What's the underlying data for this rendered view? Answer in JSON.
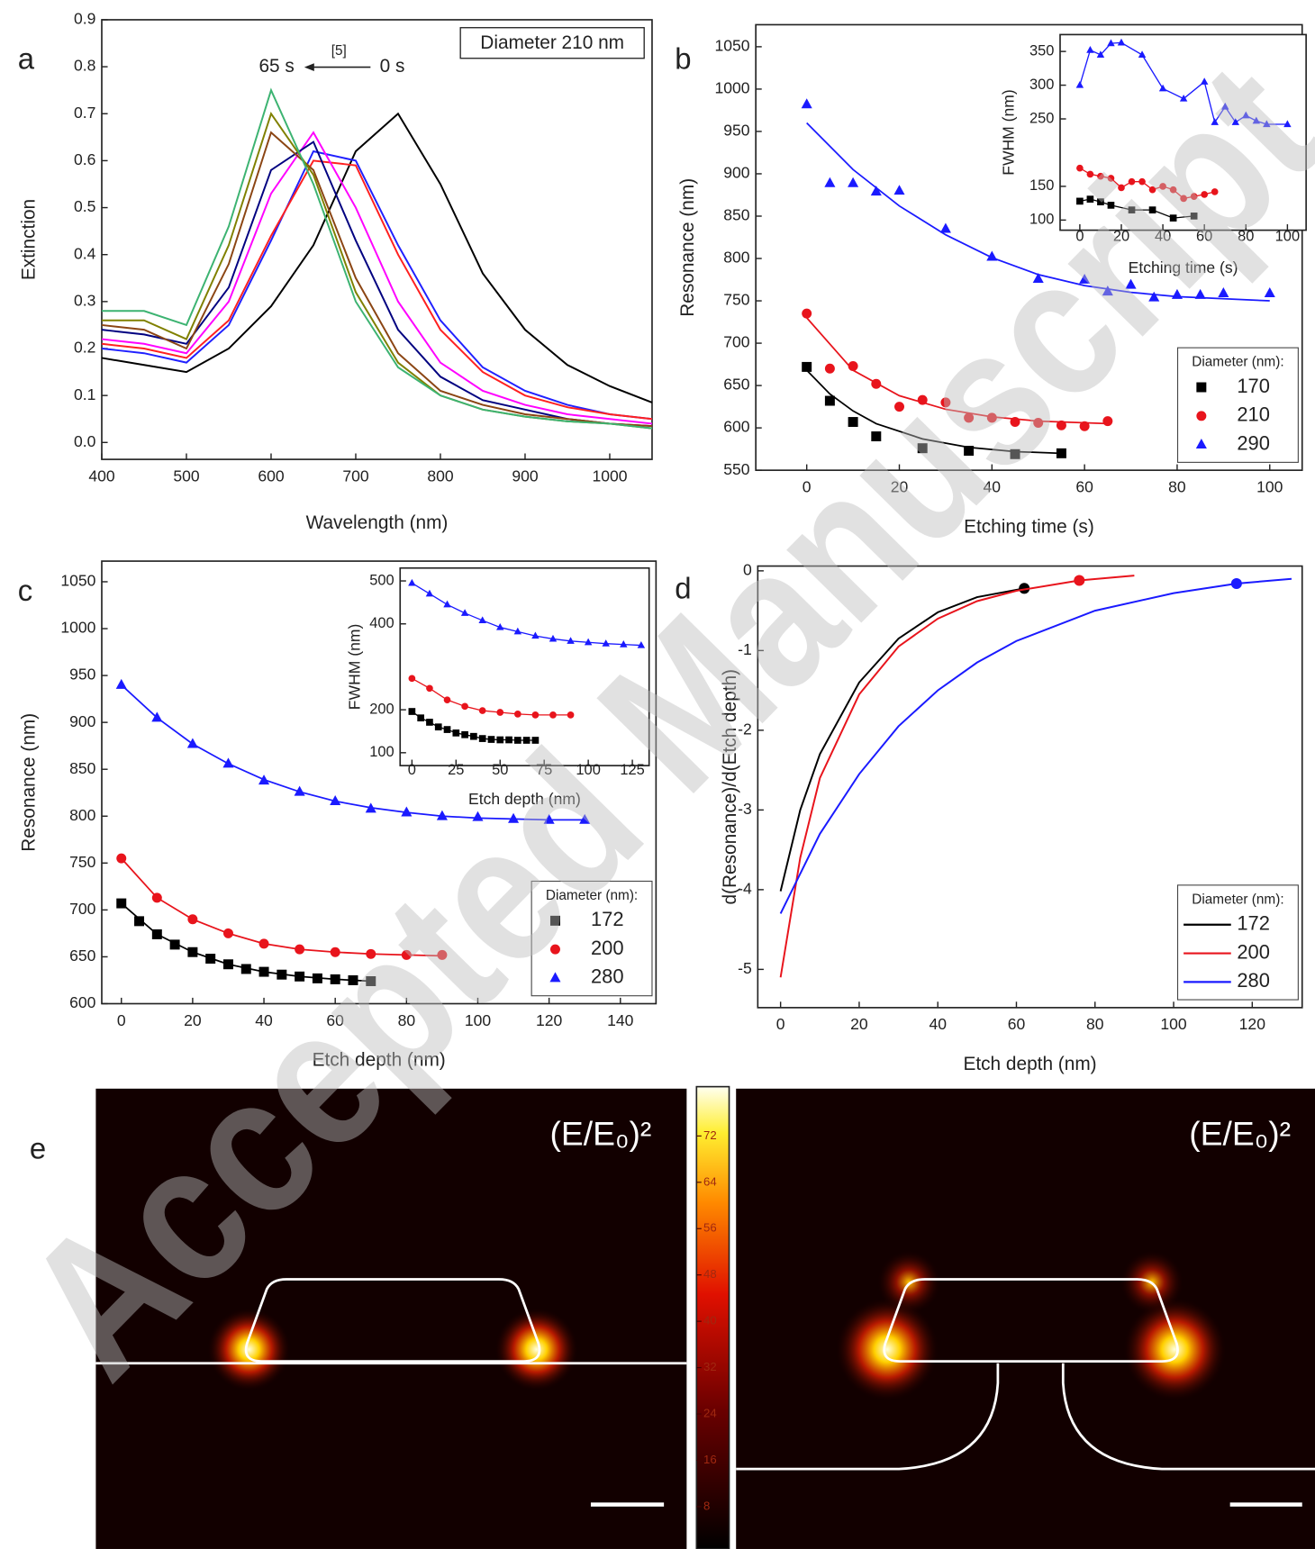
{
  "chart_data": [
    {
      "type": "line",
      "panel_label": "a",
      "x_label": "Wavelength (nm)",
      "y_label": "Extinction",
      "xlim": [
        400,
        1050
      ],
      "ylim": [
        -0.036,
        0.9
      ],
      "xticks": [
        400,
        500,
        600,
        700,
        800,
        900,
        1000
      ],
      "yticks": [
        {
          "value": 0,
          "label": "0.0"
        },
        0.1,
        0.2,
        0.3,
        0.4,
        0.5,
        0.6,
        0.7,
        0.8,
        0.9
      ],
      "annotations": [
        "Diameter 210 nm",
        "65 s",
        "[5]",
        "0 s"
      ],
      "x": [
        400,
        450,
        500,
        550,
        600,
        650,
        700,
        750,
        800,
        850,
        900,
        950,
        1000,
        1050
      ],
      "series": [
        {
          "color": "#000000",
          "values": [
            0.18,
            0.165,
            0.15,
            0.2,
            0.29,
            0.42,
            0.62,
            0.7,
            0.55,
            0.36,
            0.24,
            0.165,
            0.12,
            0.085
          ]
        },
        {
          "color": "#2020ff",
          "values": [
            0.2,
            0.19,
            0.17,
            0.25,
            0.43,
            0.62,
            0.6,
            0.42,
            0.26,
            0.16,
            0.11,
            0.08,
            0.06,
            0.05
          ]
        },
        {
          "color": "#ff2020",
          "values": [
            0.21,
            0.2,
            0.18,
            0.26,
            0.44,
            0.6,
            0.59,
            0.4,
            0.24,
            0.15,
            0.1,
            0.075,
            0.06,
            0.05
          ]
        },
        {
          "color": "#ff00ff",
          "values": [
            0.22,
            0.21,
            0.19,
            0.3,
            0.53,
            0.66,
            0.5,
            0.3,
            0.17,
            0.11,
            0.08,
            0.06,
            0.05,
            0.04
          ]
        },
        {
          "color": "#000080",
          "values": [
            0.24,
            0.23,
            0.21,
            0.33,
            0.58,
            0.64,
            0.43,
            0.24,
            0.14,
            0.09,
            0.07,
            0.05,
            0.04,
            0.035
          ]
        },
        {
          "color": "#8b4513",
          "values": [
            0.25,
            0.24,
            0.2,
            0.38,
            0.66,
            0.58,
            0.35,
            0.19,
            0.11,
            0.08,
            0.06,
            0.05,
            0.04,
            0.035
          ]
        },
        {
          "color": "#808000",
          "values": [
            0.26,
            0.26,
            0.22,
            0.42,
            0.7,
            0.57,
            0.32,
            0.17,
            0.1,
            0.07,
            0.055,
            0.045,
            0.04,
            0.03
          ]
        },
        {
          "color": "#3cb371",
          "values": [
            0.28,
            0.28,
            0.25,
            0.46,
            0.75,
            0.55,
            0.3,
            0.16,
            0.1,
            0.07,
            0.055,
            0.045,
            0.04,
            0.03
          ]
        }
      ]
    },
    {
      "type": "scatter",
      "panel_label": "b",
      "x_label": "Etching time (s)",
      "y_label": "Resonance (nm)",
      "xlim": [
        -11,
        107
      ],
      "ylim": [
        550,
        1076
      ],
      "xticks": [
        0,
        20,
        40,
        60,
        80,
        100
      ],
      "yticks": [
        550,
        600,
        650,
        700,
        750,
        800,
        850,
        900,
        950,
        1000,
        1050
      ],
      "legend": "lower right",
      "legend_title": "Diameter (nm):",
      "series": [
        {
          "name": "170",
          "color": "#000000",
          "marker": "square",
          "x": [
            0,
            5,
            10,
            15,
            25,
            35,
            45,
            55
          ],
          "values": [
            672,
            632,
            607,
            590,
            576,
            573,
            569,
            570
          ],
          "fit": {
            "x": [
              0,
              5,
              10,
              15,
              25,
              35,
              45,
              55
            ],
            "values": [
              668,
              640,
              620,
              605,
              587,
              577,
              572,
              570
            ]
          }
        },
        {
          "name": "210",
          "color": "#e8141c",
          "marker": "circle",
          "x": [
            0,
            5,
            10,
            15,
            20,
            25,
            30,
            35,
            40,
            45,
            50,
            55,
            60,
            65
          ],
          "values": [
            735,
            670,
            673,
            652,
            625,
            633,
            630,
            612,
            612,
            607,
            606,
            603,
            602,
            608
          ],
          "fit": {
            "x": [
              0,
              10,
              20,
              30,
              40,
              50,
              65
            ],
            "values": [
              730,
              668,
              638,
              622,
              613,
              608,
              605
            ]
          }
        },
        {
          "name": "290",
          "color": "#1a1aff",
          "marker": "triangle",
          "x": [
            0,
            5,
            10,
            15,
            20,
            30,
            40,
            50,
            60,
            65,
            70,
            75,
            80,
            85,
            90,
            100
          ],
          "values": [
            982,
            889,
            889,
            879,
            880,
            835,
            802,
            776,
            775,
            761,
            769,
            754,
            757,
            757,
            759,
            759
          ],
          "fit": {
            "x": [
              0,
              10,
              20,
              30,
              40,
              50,
              60,
              70,
              80,
              100
            ],
            "values": [
              960,
              905,
              862,
              828,
              801,
              781,
              768,
              760,
              755,
              750
            ]
          }
        }
      ]
    },
    {
      "type": "line",
      "x_label": "Etching time (s)",
      "y_label": "FWHM (nm)",
      "xlim": [
        -9.5,
        109
      ],
      "ylim": [
        85,
        375
      ],
      "xticks": [
        0,
        20,
        40,
        60,
        80,
        100
      ],
      "yticks": [
        100,
        150,
        250,
        300,
        350
      ],
      "series": [
        {
          "color": "#000000",
          "marker": "square",
          "x": [
            0,
            5,
            10,
            15,
            25,
            35,
            45,
            55
          ],
          "values": [
            128,
            131,
            127,
            122,
            115,
            115,
            103,
            106
          ]
        },
        {
          "color": "#e8141c",
          "marker": "circle",
          "x": [
            0,
            5,
            10,
            15,
            20,
            25,
            30,
            35,
            40,
            45,
            50,
            55,
            60,
            65
          ],
          "values": [
            177,
            168,
            165,
            162,
            148,
            157,
            157,
            145,
            150,
            145,
            132,
            135,
            138,
            142
          ]
        },
        {
          "color": "#1a1aff",
          "marker": "triangle",
          "x": [
            0,
            5,
            10,
            15,
            20,
            30,
            40,
            50,
            60,
            65,
            70,
            75,
            80,
            85,
            90,
            100
          ],
          "values": [
            300,
            352,
            345,
            362,
            363,
            345,
            295,
            280,
            305,
            245,
            268,
            245,
            255,
            247,
            242,
            242
          ]
        }
      ]
    },
    {
      "type": "scatter",
      "panel_label": "c",
      "x_label": "Etch depth (nm)",
      "y_label": "Resonance (nm)",
      "xlim": [
        -5.5,
        150
      ],
      "ylim": [
        600,
        1072
      ],
      "xticks": [
        0,
        20,
        40,
        60,
        80,
        100,
        120,
        140
      ],
      "yticks": [
        600,
        650,
        700,
        750,
        800,
        850,
        900,
        950,
        1000,
        1050
      ],
      "legend": "lower right",
      "legend_title": "Diameter (nm):",
      "series": [
        {
          "name": "172",
          "color": "#000000",
          "marker": "square",
          "x": [
            0,
            5,
            10,
            15,
            20,
            25,
            30,
            35,
            40,
            45,
            50,
            55,
            60,
            65,
            70
          ],
          "values": [
            707,
            688,
            674,
            663,
            655,
            648,
            642,
            637,
            634,
            631,
            629,
            627,
            626,
            625,
            624
          ],
          "fit": {
            "x": [
              0,
              10,
              20,
              30,
              40,
              50,
              60,
              70
            ],
            "values": [
              707,
              674,
              655,
              642,
              634,
              629,
              626,
              624
            ]
          }
        },
        {
          "name": "200",
          "color": "#e8141c",
          "marker": "circle",
          "x": [
            0,
            10,
            20,
            30,
            40,
            50,
            60,
            70,
            80,
            90
          ],
          "values": [
            755,
            713,
            690,
            675,
            664,
            658,
            655,
            653,
            652,
            652
          ],
          "fit": {
            "x": [
              0,
              10,
              20,
              30,
              40,
              50,
              60,
              70,
              80,
              90
            ],
            "values": [
              755,
              713,
              690,
              675,
              664,
              658,
              655,
              653,
              652,
              651
            ]
          }
        },
        {
          "name": "280",
          "color": "#1a1aff",
          "marker": "triangle",
          "x": [
            0,
            10,
            20,
            30,
            40,
            50,
            60,
            70,
            80,
            90,
            100,
            110,
            120,
            130
          ],
          "values": [
            940,
            905,
            877,
            856,
            838,
            826,
            816,
            808,
            804,
            800,
            799,
            797,
            796,
            796
          ],
          "fit": {
            "x": [
              0,
              10,
              20,
              30,
              40,
              50,
              60,
              70,
              80,
              90,
              100,
              110,
              120,
              130
            ],
            "values": [
              940,
              905,
              877,
              856,
              839,
              826,
              816,
              809,
              804,
              800,
              798,
              797,
              796,
              796
            ]
          }
        }
      ]
    },
    {
      "type": "line",
      "x_label": "Etch depth (nm)",
      "y_label": "FWHM (nm)",
      "xlim": [
        -6.7,
        134.5
      ],
      "ylim": [
        70,
        530
      ],
      "xticks": [
        0,
        25,
        50,
        75,
        100,
        125
      ],
      "yticks": [
        100,
        200,
        400,
        500
      ],
      "series": [
        {
          "color": "#000000",
          "marker": "square",
          "x": [
            0,
            5,
            10,
            15,
            20,
            25,
            30,
            35,
            40,
            45,
            50,
            55,
            60,
            65,
            70
          ],
          "values": [
            196,
            181,
            171,
            160,
            154,
            146,
            142,
            138,
            133,
            131,
            130,
            130,
            129,
            129,
            129
          ]
        },
        {
          "color": "#e8141c",
          "marker": "circle",
          "x": [
            0,
            10,
            20,
            30,
            40,
            50,
            60,
            70,
            80,
            90
          ],
          "values": [
            273,
            250,
            223,
            208,
            198,
            194,
            190,
            188,
            188,
            188
          ]
        },
        {
          "color": "#1a1aff",
          "marker": "triangle",
          "x": [
            0,
            10,
            20,
            30,
            40,
            50,
            60,
            70,
            80,
            90,
            100,
            110,
            120,
            130
          ],
          "values": [
            495,
            470,
            445,
            425,
            408,
            392,
            382,
            372,
            365,
            360,
            357,
            354,
            352,
            350
          ]
        }
      ]
    },
    {
      "type": "line",
      "panel_label": "d",
      "x_label": "Etch depth (nm)",
      "y_label": "d(Resonance)/d(Etch depth)",
      "xlim": [
        -5.8,
        132.7
      ],
      "ylim": [
        -5.48,
        0.06
      ],
      "xticks": [
        0,
        20,
        40,
        60,
        80,
        100,
        120
      ],
      "yticks": [
        -5,
        -4,
        -3,
        -2,
        -1,
        0
      ],
      "legend": "lower right",
      "legend_title": "Diameter (nm):",
      "series": [
        {
          "name": "172",
          "color": "#000000",
          "x": [
            0,
            5,
            10,
            20,
            30,
            40,
            50,
            62
          ],
          "values": [
            -4.02,
            -3.0,
            -2.3,
            -1.4,
            -0.85,
            -0.52,
            -0.33,
            -0.22
          ],
          "point_x": 62,
          "point_y": -0.22
        },
        {
          "name": "200",
          "color": "#e8141c",
          "x": [
            0,
            5,
            10,
            20,
            30,
            40,
            50,
            60,
            76,
            90
          ],
          "values": [
            -5.1,
            -3.6,
            -2.6,
            -1.55,
            -0.95,
            -0.6,
            -0.38,
            -0.25,
            -0.12,
            -0.06
          ],
          "point_x": 76,
          "point_y": -0.12
        },
        {
          "name": "280",
          "color": "#1a1aff",
          "x": [
            0,
            10,
            20,
            30,
            40,
            50,
            60,
            80,
            100,
            116,
            130
          ],
          "values": [
            -4.3,
            -3.3,
            -2.55,
            -1.95,
            -1.5,
            -1.15,
            -0.88,
            -0.5,
            -0.28,
            -0.16,
            -0.1
          ],
          "point_x": 116,
          "point_y": -0.16
        }
      ]
    }
  ],
  "field_maps": {
    "panel_label": "e",
    "titles": [
      "(E/E₀)²",
      "(E/E₀)²"
    ],
    "colorbar_lim": [
      0,
      80
    ],
    "colorbar_ticks": [
      8,
      16,
      24,
      32,
      40,
      48,
      56,
      64,
      72
    ]
  },
  "watermark": "Accepted Manuscript"
}
